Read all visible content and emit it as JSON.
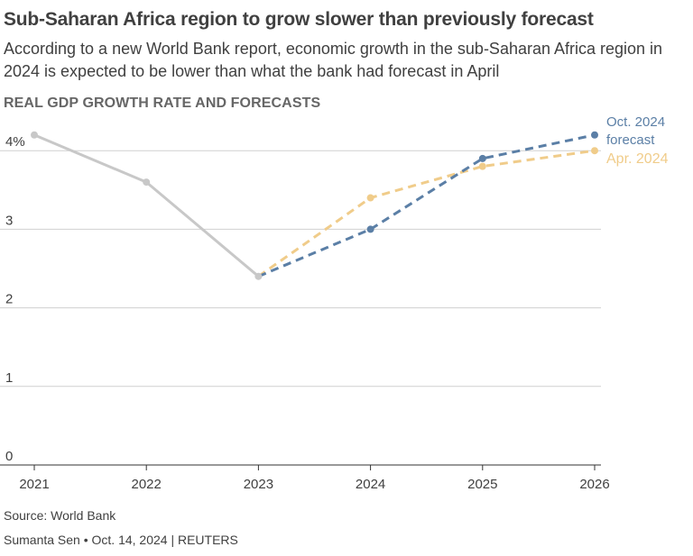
{
  "header": {
    "title": "Sub-Saharan Africa region to grow slower than previously forecast",
    "subtitle": "According to a new World Bank report, economic growth in the sub-Saharan Africa region in 2024 is expected to be lower than what the bank had forecast in April"
  },
  "footer": {
    "source": "Source: World Bank",
    "credit": "Sumanta Sen • Oct. 14, 2024 | REUTERS"
  },
  "colors": {
    "historical": "#c8c8c8",
    "oct_2024": "#5b7fa6",
    "apr_2024": "#f0cc8a",
    "grid": "#d0d0d0",
    "axis_text": "#404040"
  },
  "chart_data": {
    "type": "line",
    "title": "REAL GDP GROWTH RATE AND FORECASTS",
    "x": [
      "2021",
      "2022",
      "2023",
      "2024",
      "2025",
      "2026"
    ],
    "ylim": [
      0,
      4.2
    ],
    "yticks": [
      0,
      1,
      2,
      3,
      4
    ],
    "ytick_labels": [
      "0",
      "1",
      "2",
      "3",
      "4%"
    ],
    "grid": true,
    "series": [
      {
        "key": "historical",
        "style": "solid",
        "x": [
          "2021",
          "2022",
          "2023"
        ],
        "values": [
          4.2,
          3.6,
          2.4
        ]
      },
      {
        "key": "oct_2024",
        "name": "Oct. 2024 forecast",
        "name_lines": [
          "Oct. 2024",
          "forecast"
        ],
        "style": "dashed",
        "x": [
          "2023",
          "2024",
          "2025",
          "2026"
        ],
        "values": [
          2.4,
          3.0,
          3.9,
          4.2
        ]
      },
      {
        "key": "apr_2024",
        "name": "Apr. 2024",
        "name_lines": [
          "Apr. 2024"
        ],
        "style": "dashed",
        "x": [
          "2023",
          "2024",
          "2025",
          "2026"
        ],
        "values": [
          2.4,
          3.4,
          3.8,
          4.0
        ]
      }
    ]
  }
}
